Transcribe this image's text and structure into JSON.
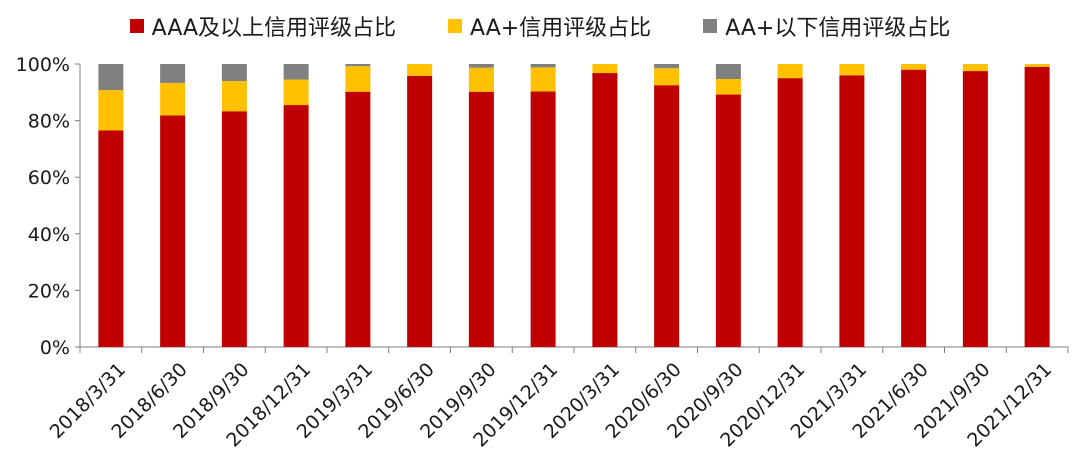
{
  "chart_data": {
    "type": "bar",
    "stacked": true,
    "categories": [
      "2018/3/31",
      "2018/6/30",
      "2018/9/30",
      "2018/12/31",
      "2019/3/31",
      "2019/6/30",
      "2019/9/30",
      "2019/12/31",
      "2020/3/31",
      "2020/6/30",
      "2020/9/30",
      "2020/12/31",
      "2021/3/31",
      "2021/6/30",
      "2021/9/30",
      "2021/12/31"
    ],
    "series": [
      {
        "name": "AAA及以上信用评级占比",
        "color": "#c00000",
        "values": [
          76.5,
          81.8,
          83.3,
          85.5,
          90.2,
          95.8,
          90.2,
          90.3,
          96.8,
          92.5,
          89.2,
          95.0,
          96.0,
          98.0,
          97.5,
          99.0
        ]
      },
      {
        "name": "AA+信用评级占比",
        "color": "#ffc000",
        "values": [
          14.3,
          11.5,
          10.7,
          9.0,
          9.0,
          4.2,
          8.5,
          8.5,
          3.2,
          6.0,
          5.5,
          5.0,
          4.0,
          2.0,
          2.5,
          1.0
        ]
      },
      {
        "name": "AA+以下信用评级占比",
        "color": "#808080",
        "values": [
          9.2,
          6.7,
          6.0,
          5.5,
          0.8,
          0.0,
          1.3,
          1.2,
          0.0,
          1.5,
          5.3,
          0.0,
          0.0,
          0.0,
          0.0,
          0.0
        ]
      }
    ],
    "ylim": [
      0,
      100
    ],
    "yticks": [
      "0%",
      "20%",
      "40%",
      "60%",
      "80%",
      "100%"
    ],
    "legend_position": "top",
    "grid": false
  }
}
